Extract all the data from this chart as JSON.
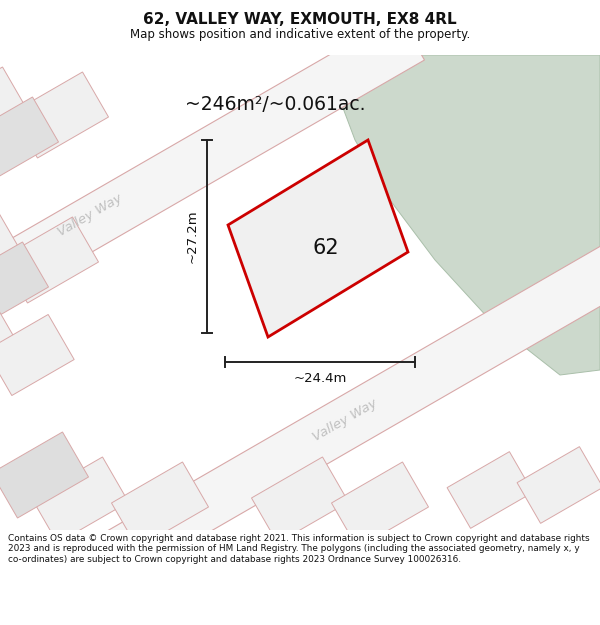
{
  "title": "62, VALLEY WAY, EXMOUTH, EX8 4RL",
  "subtitle": "Map shows position and indicative extent of the property.",
  "area_label": "~246m²/~0.061ac.",
  "dim_h": "~27.2m",
  "dim_w": "~24.4m",
  "property_label": "62",
  "footer": "Contains OS data © Crown copyright and database right 2021. This information is subject to Crown copyright and database rights 2023 and is reproduced with the permission of HM Land Registry. The polygons (including the associated geometry, namely x, y co-ordinates) are subject to Crown copyright and database rights 2023 Ordnance Survey 100026316.",
  "map_bg": "#e8e8e8",
  "property_color": "#cc0000",
  "title_color": "#111111",
  "footer_color": "#111111"
}
